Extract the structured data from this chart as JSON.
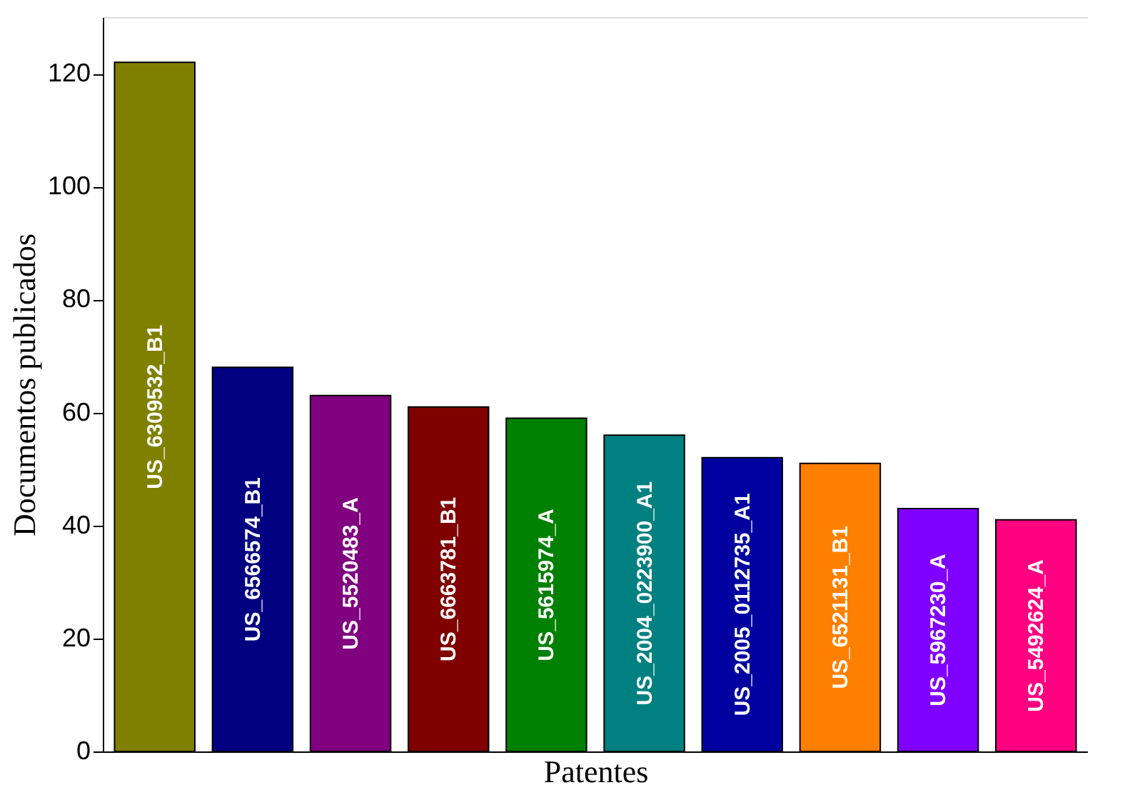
{
  "chart_data": {
    "type": "bar",
    "xlabel": "Patentes",
    "ylabel": "Documentos publicados",
    "categories": [
      "US_6309532_B1",
      "US_6566574_B1",
      "US_5520483_A",
      "US_6663781_B1",
      "US_5615974_A",
      "US_2004_0223900_A1",
      "US_2005_0112735_A1",
      "US_6521131_B1",
      "US_5967230_A",
      "US_5492624_A"
    ],
    "values": [
      122,
      68,
      63,
      61,
      59,
      56,
      52,
      51,
      43,
      41
    ],
    "colors": [
      "#808000",
      "#000080",
      "#800080",
      "#800000",
      "#008000",
      "#008080",
      "#0000a0",
      "#ff8000",
      "#8000ff",
      "#ff0080"
    ],
    "ylim": [
      0,
      130
    ],
    "yticks": [
      0,
      20,
      40,
      60,
      80,
      100,
      120
    ],
    "grid": false,
    "legend": false,
    "tick_labels": "y"
  }
}
